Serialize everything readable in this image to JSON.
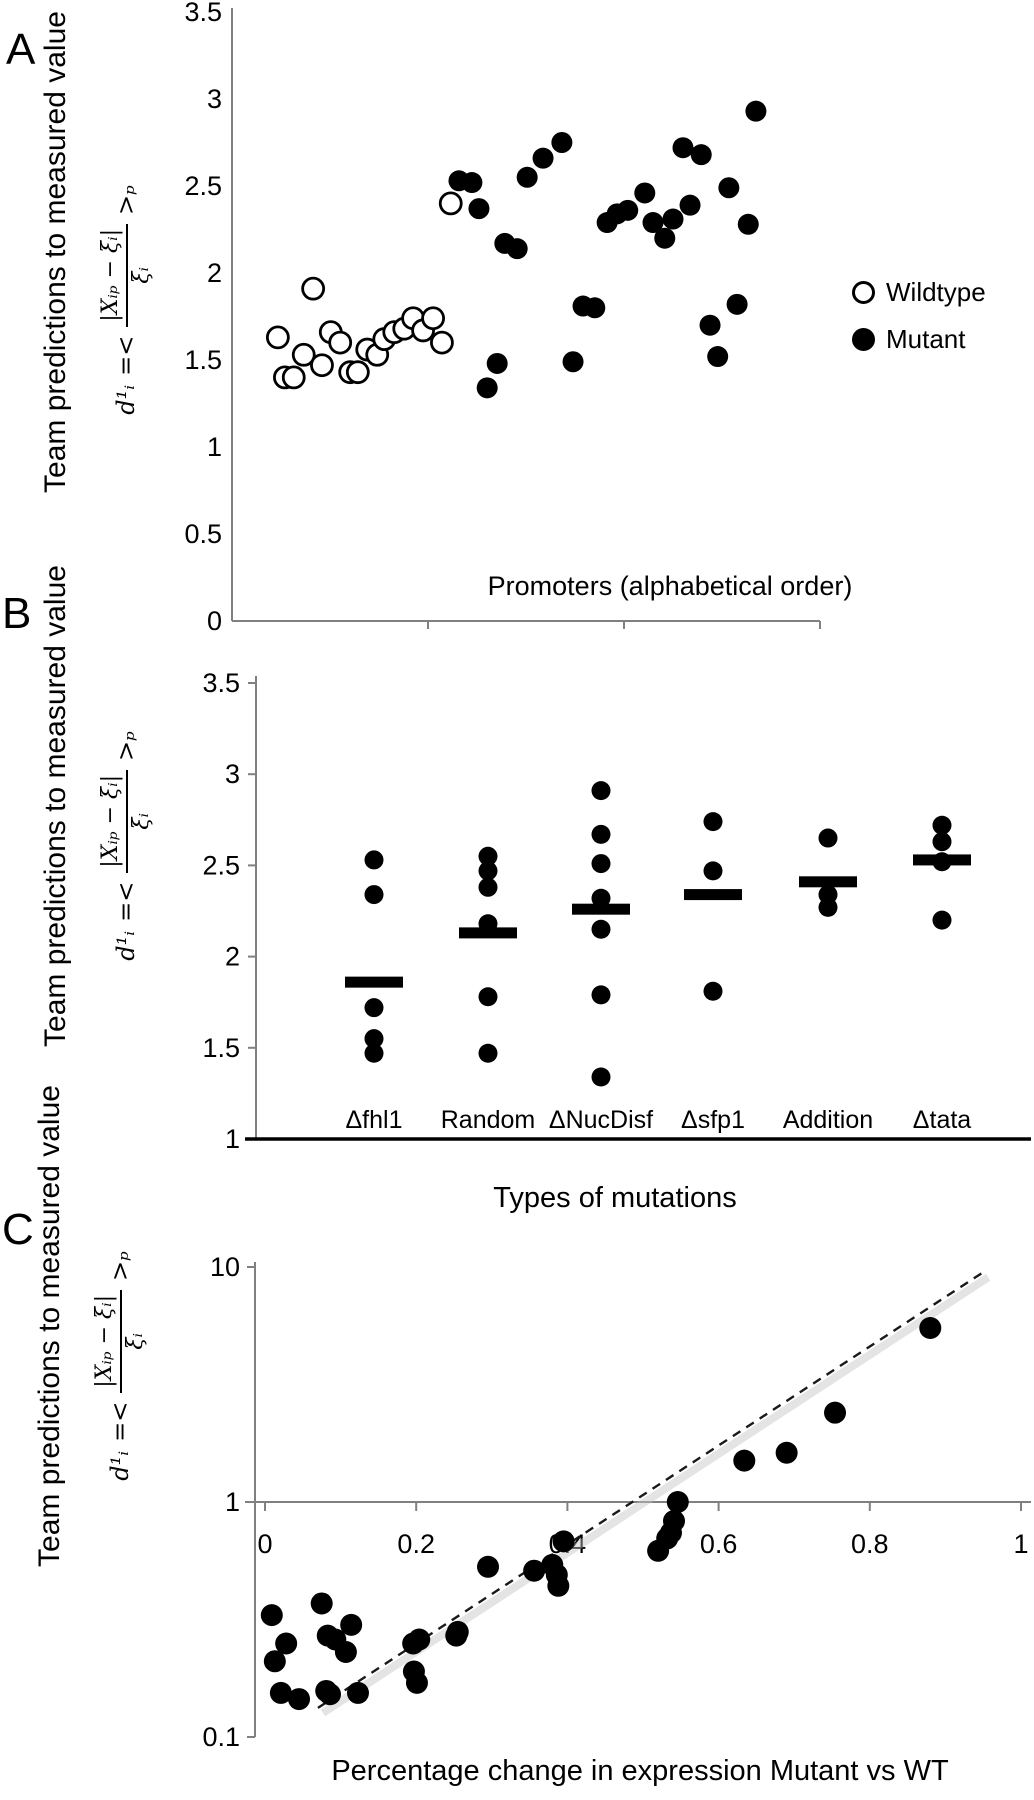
{
  "texts": {
    "panel_labels": [
      "A",
      "B",
      "C"
    ],
    "y_axis_title": "Team predictions to measured value",
    "formula": {
      "lead": "d¹ᵢ",
      "relation": "=<",
      "numerator": "|Xᵢₚ − ξᵢ|",
      "denominator": "ξᵢ",
      "close": ">ₚ"
    }
  },
  "legend": {
    "items": [
      {
        "label": "Wildtype",
        "marker": "open-circle"
      },
      {
        "label": "Mutant",
        "marker": "filled-circle"
      }
    ]
  },
  "colors": {
    "point": "#000000",
    "axis_line": "#808080",
    "panel_b_baseline": "#000000",
    "trendline": "#1a1a1a",
    "trendline_shadow": "#c4c4c4",
    "text": "#000000",
    "background": "#ffffff"
  },
  "chart_data": [
    {
      "panel": "A",
      "type": "scatter",
      "xlabel": "Promoters (alphabetical order)",
      "ylabel": "Team predictions to measured value",
      "ylim": [
        0,
        3.5
      ],
      "yticks": [
        3.5,
        3,
        2.5,
        2,
        1.5,
        1,
        0.5,
        0
      ],
      "x_axis_note": "individual promoters unlabeled; x stored as fraction of axis length",
      "legend_position": "right",
      "series": [
        {
          "name": "Wildtype",
          "marker": "open-circle",
          "points": [
            [
              0.078,
              1.63
            ],
            [
              0.09,
              1.4
            ],
            [
              0.105,
              1.4
            ],
            [
              0.122,
              1.53
            ],
            [
              0.138,
              1.91
            ],
            [
              0.153,
              1.47
            ],
            [
              0.168,
              1.66
            ],
            [
              0.184,
              1.6
            ],
            [
              0.201,
              1.43
            ],
            [
              0.214,
              1.43
            ],
            [
              0.23,
              1.56
            ],
            [
              0.247,
              1.53
            ],
            [
              0.259,
              1.62
            ],
            [
              0.276,
              1.66
            ],
            [
              0.293,
              1.68
            ],
            [
              0.308,
              1.74
            ],
            [
              0.325,
              1.67
            ],
            [
              0.342,
              1.74
            ],
            [
              0.357,
              1.6
            ],
            [
              0.372,
              2.4
            ]
          ]
        },
        {
          "name": "Mutant",
          "marker": "filled-circle",
          "points": [
            [
              0.386,
              2.53
            ],
            [
              0.408,
              2.52
            ],
            [
              0.42,
              2.37
            ],
            [
              0.434,
              1.34
            ],
            [
              0.451,
              1.48
            ],
            [
              0.464,
              2.17
            ],
            [
              0.485,
              2.14
            ],
            [
              0.502,
              2.55
            ],
            [
              0.529,
              2.66
            ],
            [
              0.561,
              2.75
            ],
            [
              0.58,
              1.49
            ],
            [
              0.597,
              1.81
            ],
            [
              0.617,
              1.8
            ],
            [
              0.638,
              2.29
            ],
            [
              0.655,
              2.34
            ],
            [
              0.673,
              2.36
            ],
            [
              0.702,
              2.46
            ],
            [
              0.716,
              2.29
            ],
            [
              0.736,
              2.2
            ],
            [
              0.75,
              2.31
            ],
            [
              0.767,
              2.72
            ],
            [
              0.779,
              2.39
            ],
            [
              0.798,
              2.68
            ],
            [
              0.813,
              1.7
            ],
            [
              0.826,
              1.52
            ],
            [
              0.845,
              2.49
            ],
            [
              0.859,
              1.82
            ],
            [
              0.878,
              2.28
            ],
            [
              0.891,
              2.93
            ]
          ]
        }
      ]
    },
    {
      "panel": "B",
      "type": "dot-plot",
      "xlabel": "Types of mutations",
      "ylabel": "Team predictions to measured value",
      "ylim": [
        1,
        3.5
      ],
      "yticks": [
        3.5,
        3,
        2.5,
        2,
        1.5,
        1
      ],
      "categories": [
        "Δfhl1",
        "Random",
        "ΔNucDisf",
        "Δsfp1",
        "Addition",
        "Δtata"
      ],
      "groups": [
        {
          "category": "Δfhl1",
          "values": [
            2.53,
            2.34,
            1.72,
            1.55,
            1.47
          ],
          "mean_bar": 1.86
        },
        {
          "category": "Random",
          "values": [
            2.55,
            2.47,
            2.38,
            2.18,
            1.78,
            1.47
          ],
          "mean_bar": 2.13
        },
        {
          "category": "ΔNucDisf",
          "values": [
            2.91,
            2.67,
            2.51,
            2.32,
            2.15,
            1.79,
            1.34
          ],
          "mean_bar": 2.26
        },
        {
          "category": "Δsfp1",
          "values": [
            2.74,
            2.47,
            1.81
          ],
          "mean_bar": 2.34
        },
        {
          "category": "Addition",
          "values": [
            2.65,
            2.34,
            2.27
          ],
          "mean_bar": 2.41
        },
        {
          "category": "Δtata",
          "values": [
            2.72,
            2.63,
            2.52,
            2.2
          ],
          "mean_bar": 2.53
        }
      ]
    },
    {
      "panel": "C",
      "type": "scatter",
      "xlabel": "Percentage change in expression Mutant vs WT",
      "ylabel": "Team predictions to measured value",
      "xlim": [
        0,
        1
      ],
      "xticks": [
        0,
        0.2,
        0.4,
        0.6,
        0.8,
        1
      ],
      "yscale": "log",
      "ylim": [
        0.1,
        10
      ],
      "yticks": [
        10,
        1,
        0.1
      ],
      "points": [
        [
          0.009,
          0.33
        ],
        [
          0.013,
          0.21
        ],
        [
          0.021,
          0.154
        ],
        [
          0.028,
          0.25
        ],
        [
          0.045,
          0.145
        ],
        [
          0.075,
          0.37
        ],
        [
          0.081,
          0.157
        ],
        [
          0.086,
          0.152
        ],
        [
          0.083,
          0.27
        ],
        [
          0.093,
          0.26
        ],
        [
          0.107,
          0.23
        ],
        [
          0.114,
          0.3
        ],
        [
          0.123,
          0.154
        ],
        [
          0.196,
          0.25
        ],
        [
          0.197,
          0.19
        ],
        [
          0.201,
          0.17
        ],
        [
          0.204,
          0.26
        ],
        [
          0.253,
          0.27
        ],
        [
          0.255,
          0.28
        ],
        [
          0.295,
          0.53
        ],
        [
          0.356,
          0.51
        ],
        [
          0.38,
          0.54
        ],
        [
          0.386,
          0.49
        ],
        [
          0.388,
          0.44
        ],
        [
          0.395,
          0.68
        ],
        [
          0.52,
          0.62
        ],
        [
          0.532,
          0.7
        ],
        [
          0.537,
          0.74
        ],
        [
          0.541,
          0.83
        ],
        [
          0.546,
          1.0
        ],
        [
          0.634,
          1.5
        ],
        [
          0.69,
          1.62
        ],
        [
          0.754,
          2.4
        ],
        [
          0.88,
          5.5
        ]
      ],
      "trendline": {
        "style": "dashed",
        "from": [
          0.07,
          0.133
        ],
        "to": [
          0.95,
          9.5
        ]
      }
    }
  ]
}
